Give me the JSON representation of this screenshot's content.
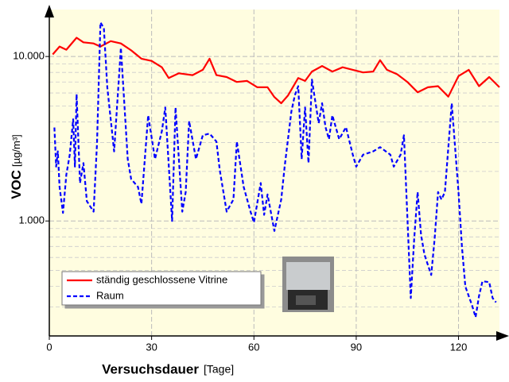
{
  "chart_data": {
    "type": "line",
    "x_label": "Versuchsdauer",
    "x_unit": "[Tage]",
    "y_label": "VOC",
    "y_unit": "[µg/m³]",
    "xlim": [
      0,
      132
    ],
    "xticks": [
      0,
      30,
      60,
      90,
      120
    ],
    "ylim": [
      200,
      19300
    ],
    "yticks": [
      {
        "value": 1000,
        "label": "1.000"
      },
      {
        "value": 10000,
        "label": "10.000"
      }
    ],
    "log_y": true,
    "grid": true,
    "minor_grid": true,
    "legend": "lower left",
    "series": [
      {
        "name": "ständig geschlossene Vitrine",
        "color": "#ff0000",
        "linestyle": "solid",
        "x": [
          1,
          3,
          5,
          8,
          10,
          13,
          15,
          18,
          21,
          24,
          27,
          30,
          33,
          35,
          38,
          42,
          45,
          47,
          49,
          52,
          55,
          58,
          61,
          64,
          66,
          68,
          70,
          73,
          75,
          77,
          80,
          83,
          86,
          89,
          92,
          95,
          97,
          99,
          102,
          105,
          108,
          111,
          114,
          117,
          120,
          123,
          126,
          129,
          132
        ],
        "values": [
          10300,
          11500,
          11000,
          13000,
          12200,
          12000,
          11500,
          12400,
          12000,
          10900,
          9700,
          9400,
          8600,
          7400,
          7900,
          7700,
          8300,
          9700,
          7700,
          7500,
          7000,
          7100,
          6500,
          6500,
          5670,
          5200,
          5800,
          7400,
          7100,
          8100,
          8750,
          8100,
          8600,
          8300,
          8000,
          8100,
          9500,
          8300,
          7800,
          7000,
          6060,
          6500,
          6600,
          5700,
          7600,
          8300,
          6600,
          7500,
          6500
        ]
      },
      {
        "name": "Raum",
        "color": "#0000ff",
        "linestyle": "dashed",
        "x": [
          1.5,
          2,
          2.5,
          3,
          4,
          5,
          6,
          7,
          7.5,
          8,
          9,
          10,
          11,
          13,
          14,
          15,
          16,
          17,
          19,
          21,
          22,
          23,
          24,
          26,
          27,
          29,
          31,
          33,
          34,
          36,
          37,
          39,
          40,
          41,
          43,
          45,
          47,
          49,
          50,
          52,
          54,
          55,
          57,
          59,
          60,
          62,
          63,
          64,
          66,
          68,
          69,
          71,
          72,
          73,
          74,
          75,
          76,
          77,
          79,
          80,
          81,
          82,
          83,
          85,
          87,
          89,
          90,
          92,
          95,
          97,
          100,
          101,
          103,
          104,
          106,
          107,
          108,
          109,
          110,
          112,
          113,
          114,
          115,
          116,
          118,
          120,
          121,
          122,
          124,
          125,
          126,
          127,
          129,
          130,
          131
        ],
        "values": [
          3700,
          2140,
          2650,
          1610,
          1120,
          1910,
          2530,
          4150,
          2140,
          5900,
          1700,
          2250,
          1320,
          1140,
          2980,
          16100,
          14900,
          6500,
          2650,
          11300,
          5200,
          2380,
          1800,
          1610,
          1270,
          4390,
          2380,
          3510,
          4900,
          1000,
          4900,
          1140,
          1500,
          4050,
          2380,
          3320,
          3400,
          3040,
          2030,
          1140,
          1350,
          3040,
          1610,
          1140,
          980,
          1700,
          1090,
          1450,
          870,
          1350,
          2140,
          4640,
          5800,
          6600,
          2380,
          4900,
          2250,
          7240,
          3930,
          5200,
          3720,
          3140,
          4390,
          3140,
          3720,
          2530,
          2140,
          2530,
          2650,
          2810,
          2530,
          2140,
          2530,
          3320,
          340,
          780,
          1500,
          825,
          625,
          470,
          780,
          1500,
          1350,
          1500,
          5200,
          1500,
          700,
          400,
          305,
          260,
          350,
          430,
          425,
          340,
          320
        ]
      }
    ]
  }
}
